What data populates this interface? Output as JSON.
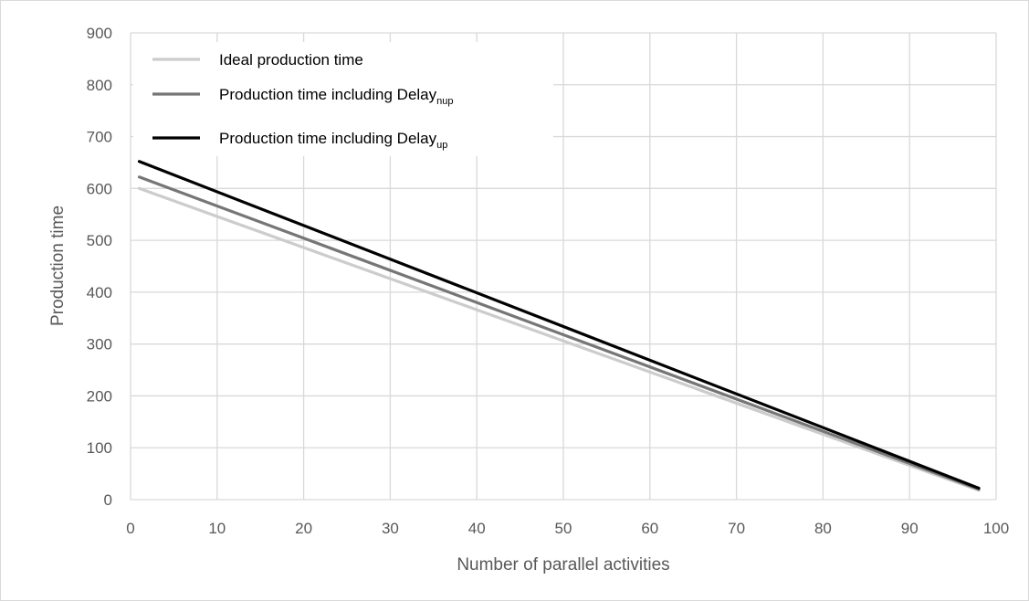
{
  "chart_data": {
    "type": "line",
    "xlabel": "Number of parallel activities",
    "ylabel": "Production time",
    "xlim": [
      0,
      100
    ],
    "ylim": [
      0,
      900
    ],
    "xticks": [
      "0",
      "10",
      "20",
      "30",
      "40",
      "50",
      "60",
      "70",
      "80",
      "90",
      "100"
    ],
    "yticks": [
      "0",
      "100",
      "200",
      "300",
      "400",
      "500",
      "600",
      "700",
      "800",
      "900"
    ],
    "grid": true,
    "legend_position": "top-left",
    "series": [
      {
        "name": "Ideal production time",
        "name_main": "Ideal production time",
        "name_sub": "",
        "color": "#cccccc",
        "x": [
          1,
          98
        ],
        "y": [
          600,
          18
        ]
      },
      {
        "name": "Production time including Delaynup",
        "name_main": "Production time including Delay",
        "name_sub": "nup",
        "color": "#767676",
        "x": [
          1,
          98
        ],
        "y": [
          622,
          20
        ]
      },
      {
        "name": "Production time including Delayup",
        "name_main": "Production time including Delay",
        "name_sub": "up",
        "color": "#000000",
        "x": [
          1,
          98
        ],
        "y": [
          652,
          22
        ]
      }
    ],
    "colors": {
      "grid": "#d9d9d9",
      "tick_text": "#595959"
    }
  }
}
